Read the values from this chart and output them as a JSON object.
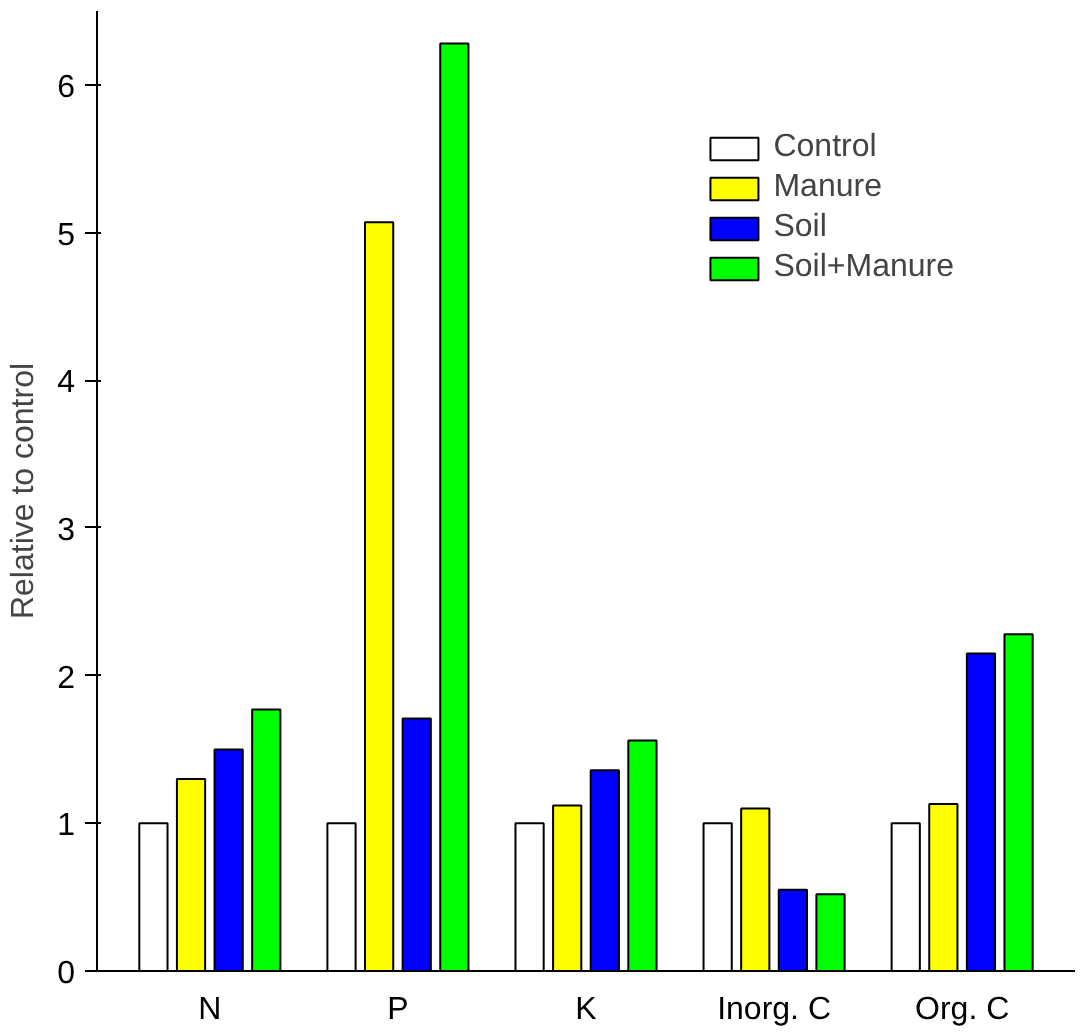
{
  "chart_data": {
    "type": "bar",
    "ylabel": "Relative to control",
    "categories": [
      "N",
      "P",
      "K",
      "Inorg. C",
      "Org. C"
    ],
    "series": [
      {
        "name": "Control",
        "color": "#ffffff",
        "values": [
          1,
          1,
          1,
          1,
          1
        ]
      },
      {
        "name": "Manure",
        "color": "#ffff00",
        "values": [
          1.3,
          5.07,
          1.12,
          1.1,
          1.13
        ]
      },
      {
        "name": "Soil",
        "color": "#0000ff",
        "values": [
          1.5,
          1.71,
          1.36,
          0.55,
          2.15
        ]
      },
      {
        "name": "Soil+Manure",
        "color": "#00ff00",
        "values": [
          1.77,
          6.28,
          1.56,
          0.52,
          2.28
        ]
      }
    ],
    "ylim": [
      0,
      6.5
    ],
    "yticks": [
      0,
      1,
      2,
      3,
      4,
      5,
      6
    ],
    "grid": false,
    "legend": "top right"
  }
}
